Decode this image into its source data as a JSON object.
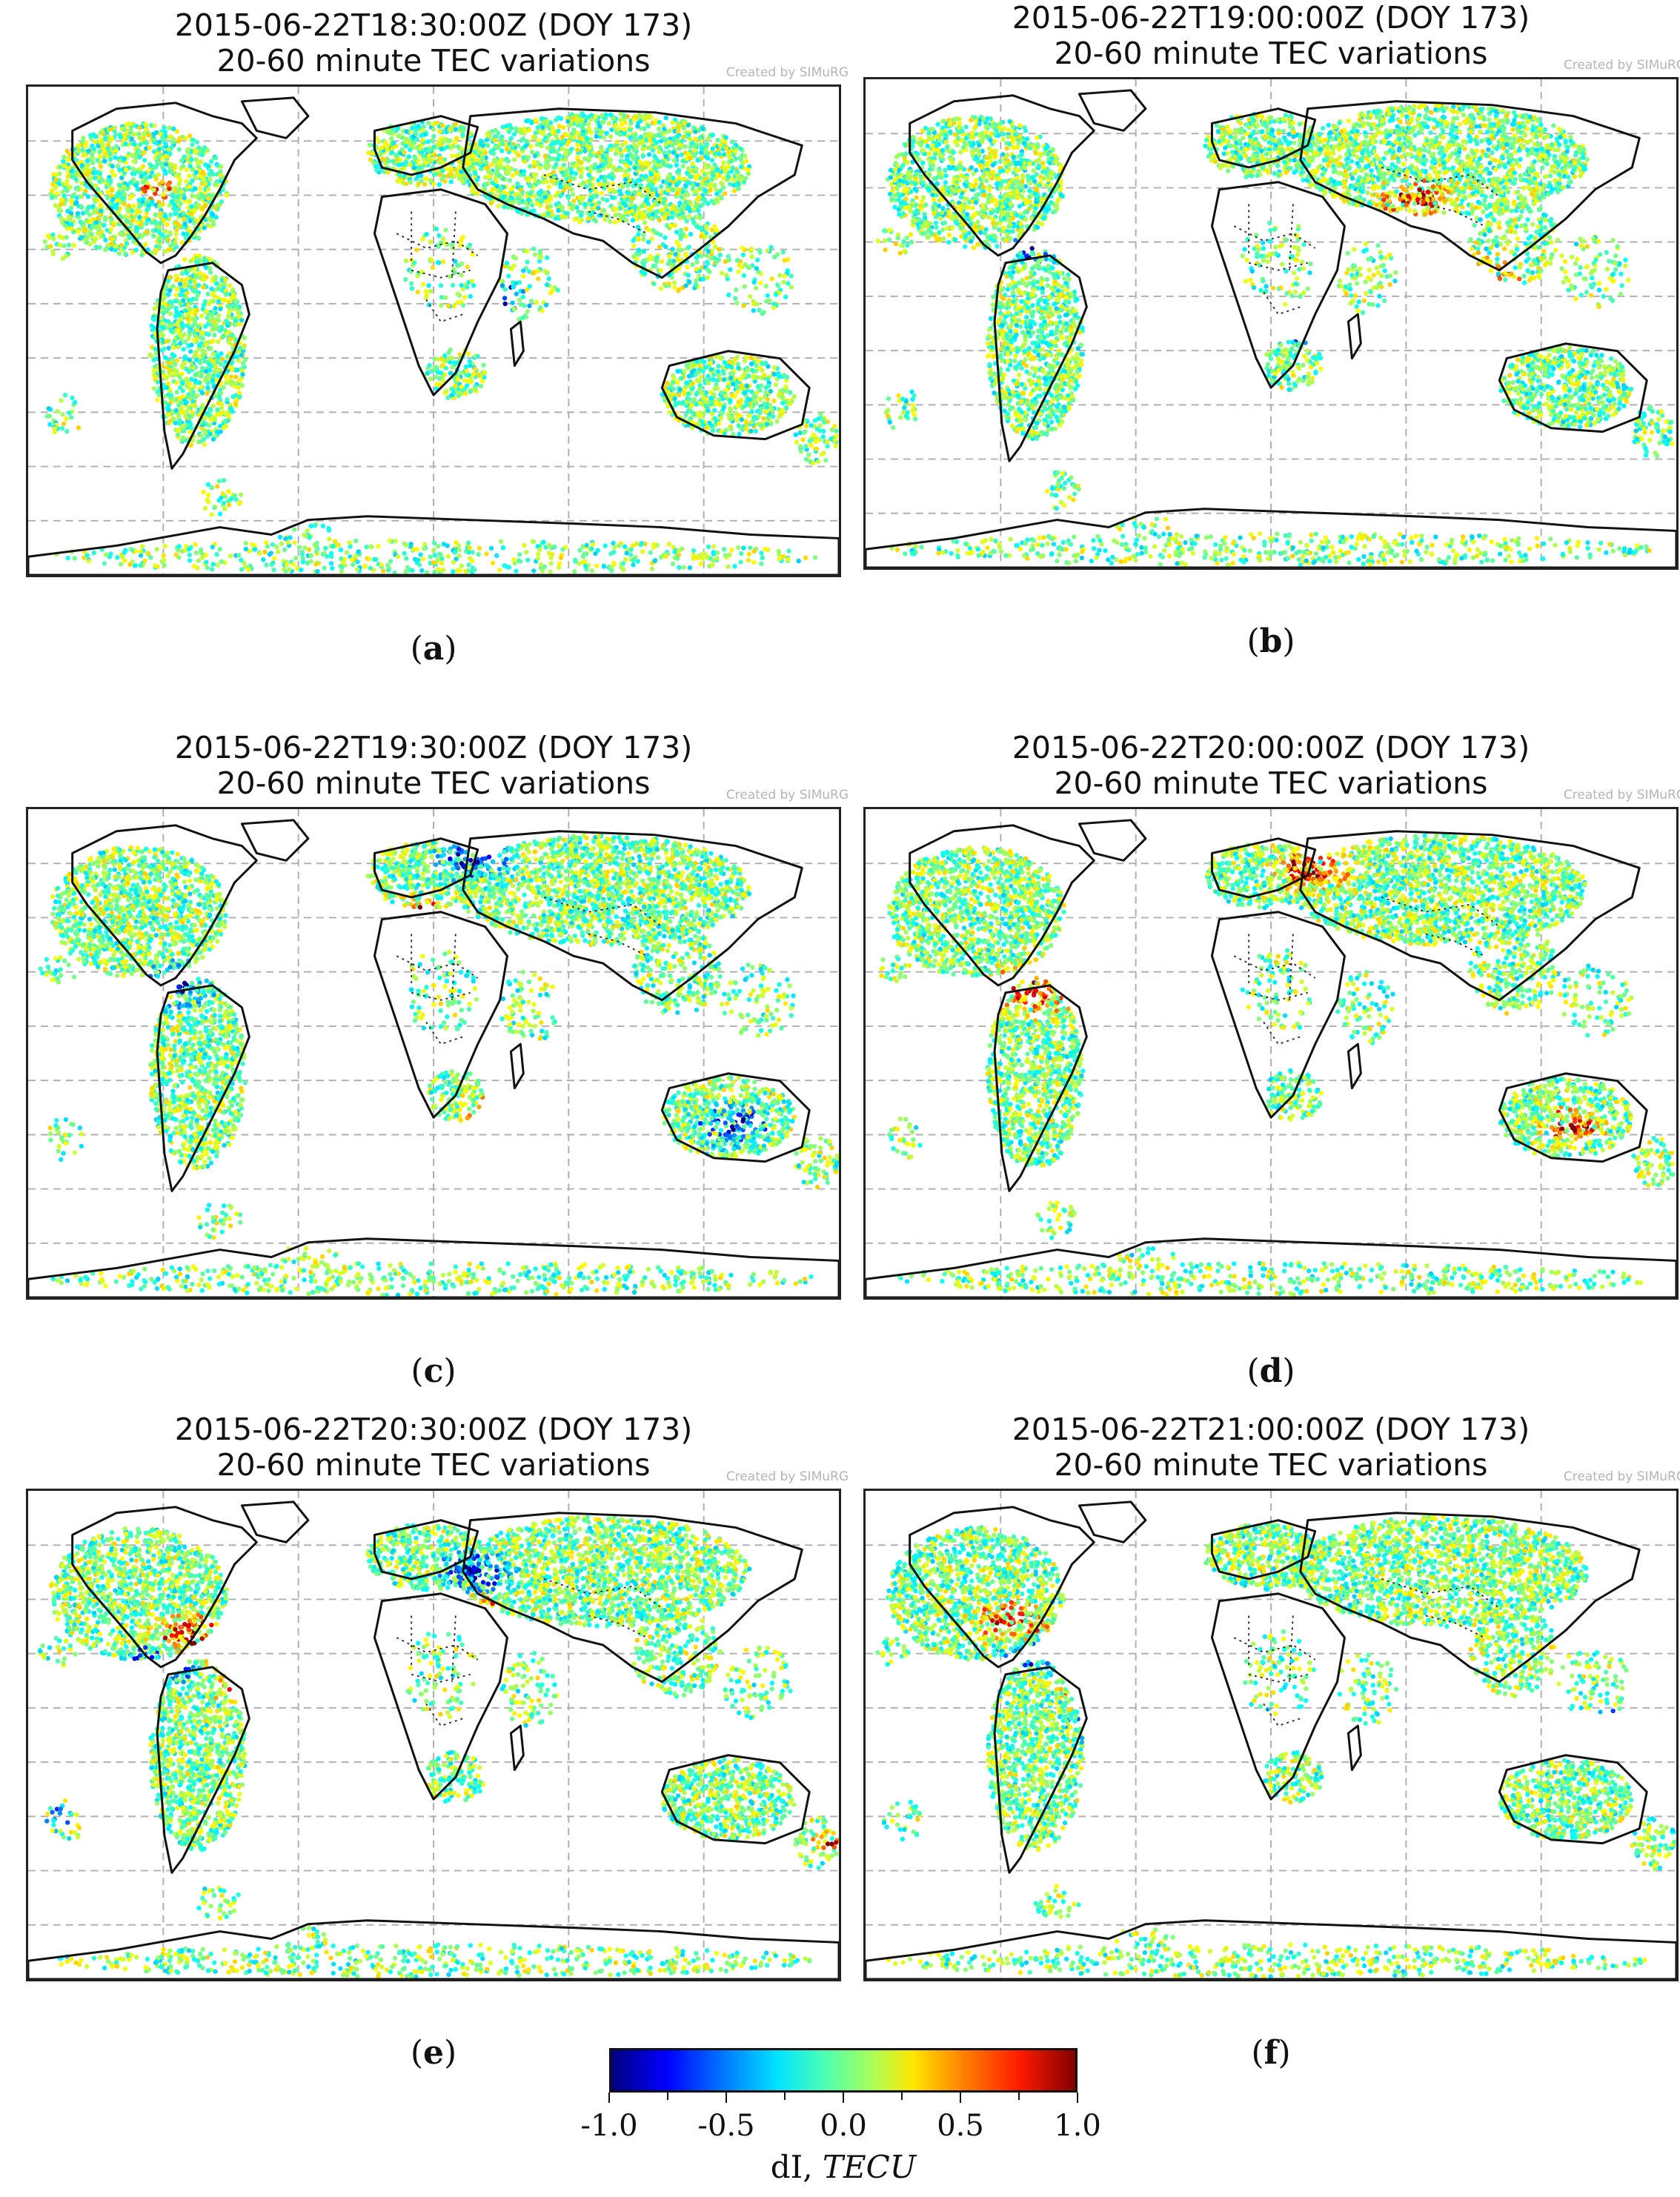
{
  "panels": [
    {
      "id": "a",
      "title": "2015-06-22T18:30:00Z (DOY 173)",
      "subtitle": "20-60 minute TEC variations",
      "credit": "Created by SIMuRG",
      "caption_letter": "a",
      "seed": 11,
      "red_zones": [
        [
          0.37,
          0.55,
          0.05
        ],
        [
          0.16,
          0.21,
          0.03
        ]
      ],
      "blue_zones": [
        [
          0.58,
          0.43,
          0.05
        ]
      ]
    },
    {
      "id": "b",
      "title": "2015-06-22T19:00:00Z (DOY 173)",
      "subtitle": "20-60 minute TEC variations",
      "credit": "Created by SIMuRG",
      "caption_letter": "b",
      "seed": 23,
      "red_zones": [
        [
          0.76,
          0.42,
          0.07
        ],
        [
          0.32,
          0.22,
          0.04
        ],
        [
          0.68,
          0.25,
          0.06
        ]
      ],
      "blue_zones": [
        [
          0.21,
          0.35,
          0.04
        ],
        [
          0.54,
          0.52,
          0.04
        ]
      ]
    },
    {
      "id": "c",
      "title": "2015-06-22T19:30:00Z (DOY 173)",
      "subtitle": "20-60 minute TEC variations",
      "credit": "Created by SIMuRG",
      "caption_letter": "c",
      "seed": 37,
      "red_zones": [
        [
          0.35,
          0.58,
          0.06
        ],
        [
          0.48,
          0.22,
          0.05
        ],
        [
          0.58,
          0.62,
          0.05
        ],
        [
          0.31,
          0.88,
          0.04
        ]
      ],
      "blue_zones": [
        [
          0.18,
          0.36,
          0.06
        ],
        [
          0.3,
          0.8,
          0.05
        ],
        [
          0.55,
          0.1,
          0.06
        ],
        [
          0.87,
          0.65,
          0.06
        ]
      ]
    },
    {
      "id": "d",
      "title": "2015-06-22T20:00:00Z (DOY 173)",
      "subtitle": "20-60 minute TEC variations",
      "credit": "Created by SIMuRG",
      "caption_letter": "d",
      "seed": 51,
      "red_zones": [
        [
          0.2,
          0.37,
          0.07
        ],
        [
          0.55,
          0.12,
          0.06
        ],
        [
          0.33,
          0.75,
          0.07
        ],
        [
          0.87,
          0.65,
          0.05
        ],
        [
          0.03,
          0.6,
          0.03
        ]
      ],
      "blue_zones": [
        [
          0.34,
          0.88,
          0.04
        ],
        [
          0.58,
          0.62,
          0.03
        ]
      ]
    },
    {
      "id": "e",
      "title": "2015-06-22T20:30:00Z (DOY 173)",
      "subtitle": "20-60 minute TEC variations",
      "credit": "Created by SIMuRG",
      "caption_letter": "e",
      "seed": 67,
      "red_zones": [
        [
          0.2,
          0.3,
          0.06
        ],
        [
          0.28,
          0.4,
          0.06
        ],
        [
          0.55,
          0.24,
          0.04
        ],
        [
          0.99,
          0.72,
          0.03
        ]
      ],
      "blue_zones": [
        [
          0.16,
          0.36,
          0.06
        ],
        [
          0.35,
          0.75,
          0.06
        ],
        [
          0.55,
          0.17,
          0.06
        ],
        [
          0.03,
          0.67,
          0.03
        ]
      ]
    },
    {
      "id": "f",
      "title": "2015-06-22T21:00:00Z (DOY 173)",
      "subtitle": "20-60 minute TEC variations",
      "credit": "Created by SIMuRG",
      "caption_letter": "f",
      "seed": 83,
      "red_zones": [
        [
          0.18,
          0.27,
          0.06
        ],
        [
          0.3,
          0.41,
          0.07
        ],
        [
          0.3,
          0.07,
          0.04
        ]
      ],
      "blue_zones": [
        [
          0.2,
          0.33,
          0.05
        ],
        [
          0.29,
          0.48,
          0.05
        ],
        [
          0.92,
          0.48,
          0.04
        ]
      ]
    }
  ],
  "colorbar": {
    "ticks": [
      "-1.0",
      "-0.5",
      "0.0",
      "0.5",
      "1.0"
    ],
    "tick_values": [
      -1.0,
      -0.5,
      0.0,
      0.5,
      1.0
    ],
    "range": [
      -1.0,
      1.0
    ],
    "label_plain": "dI, ",
    "label_italic": "TECU",
    "colormap": "jet"
  }
}
